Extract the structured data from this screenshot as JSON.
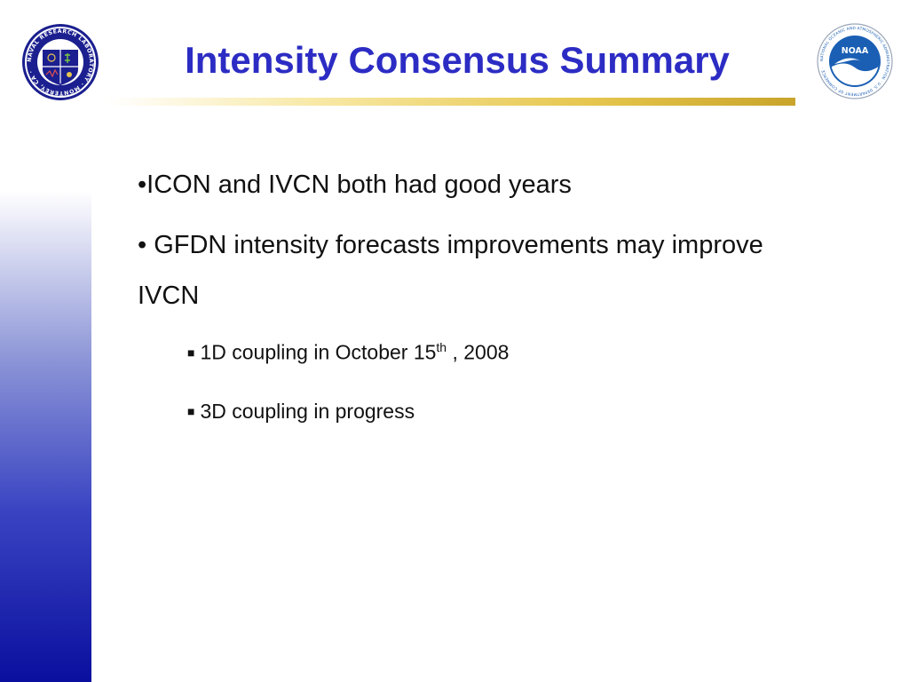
{
  "slide": {
    "title": "Intensity Consensus Summary",
    "bullets": [
      {
        "marker": "•",
        "text": "ICON and IVCN both had good years"
      },
      {
        "marker": "•",
        "text": " GFDN intensity forecasts improvements may improve IVCN"
      }
    ],
    "sub_bullets": [
      {
        "text_before": "1D coupling in October 15",
        "sup": "th",
        "text_after": " , 2008"
      },
      {
        "text_before": "3D coupling in progress",
        "sup": "",
        "text_after": ""
      }
    ],
    "sub_marker": "■"
  },
  "logos": {
    "left": {
      "icon": "nrl-monterey-seal-icon",
      "ring_text": "NAVAL RESEARCH LABORATORY · MONTEREY, CA ·"
    },
    "right": {
      "icon": "noaa-seal-icon",
      "center_text": "NOAA",
      "ring_text": "NATIONAL OCEANIC AND ATMOSPHERIC ADMINISTRATION · U.S. DEPARTMENT OF COMMERCE ·"
    }
  },
  "colors": {
    "title": "#2c2cc4",
    "sidebar_bottom": "#0a0f9e",
    "rule_gold": "#c9a42b",
    "noaa_blue": "#1a5fb4",
    "nrl_navy": "#1b1f8f"
  }
}
